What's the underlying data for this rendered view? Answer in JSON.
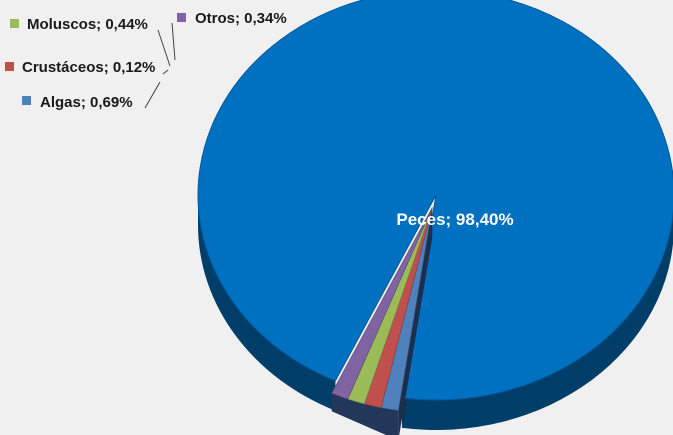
{
  "chart_data": {
    "type": "pie",
    "title": "",
    "slices": [
      {
        "name": "Peces",
        "value": 98.4,
        "label": "Peces; 98,40%",
        "color": "#0070c0"
      },
      {
        "name": "Algas",
        "value": 0.69,
        "label": "Algas; 0,69%",
        "color": "#4f81bd"
      },
      {
        "name": "Crustáceos",
        "value": 0.12,
        "label": "Crustáceos; 0,12%",
        "color": "#c0504d"
      },
      {
        "name": "Moluscos",
        "value": 0.44,
        "label": "Moluscos; 0,44%",
        "color": "#9bbb59"
      },
      {
        "name": "Otros",
        "value": 0.34,
        "label": "Otros; 0,34%",
        "color": "#8064a2"
      }
    ],
    "style": "3d-exploded"
  }
}
